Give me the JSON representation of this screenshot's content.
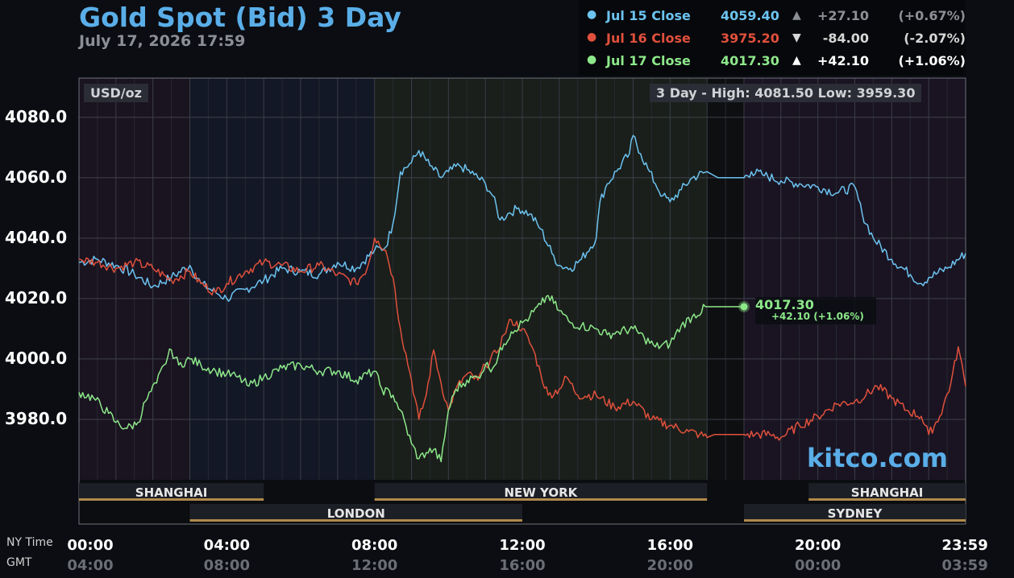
{
  "header": {
    "title": "Gold Spot (Bid) 3 Day",
    "datetime": "July 17, 2026 17:59"
  },
  "legend": [
    {
      "label": "Jul 15 Close",
      "value": "4059.40",
      "arrow": "▲",
      "change": "+27.10",
      "pct": "(+0.67%)",
      "color": "#6cc3f0",
      "dim": true
    },
    {
      "label": "Jul 16 Close",
      "value": "3975.20",
      "arrow": "▼",
      "change": "-84.00",
      "pct": "(-2.07%)",
      "color": "#e0503c",
      "dim": false
    },
    {
      "label": "Jul 17 Close",
      "value": "4017.30",
      "arrow": "▲",
      "change": "+42.10",
      "pct": "(+1.06%)",
      "color": "#8de88a",
      "dim": false
    }
  ],
  "unit_label": "USD/oz",
  "high_low": "3 Day - High: 4081.50  Low: 3959.30",
  "watermark": "kitco.com",
  "last_point": {
    "value": "4017.30",
    "change": "+42.10 (+1.06%)"
  },
  "axis_captions": {
    "ny": "NY Time",
    "gmt": "GMT"
  },
  "sessions": [
    {
      "name": "SHANGHAI",
      "start": 0,
      "end": 5,
      "row": 1
    },
    {
      "name": "NEW YORK",
      "start": 8,
      "end": 17,
      "row": 1
    },
    {
      "name": "SHANGHAI",
      "start": 19.75,
      "end": 24,
      "row": 1
    },
    {
      "name": "LONDON",
      "start": 3,
      "end": 12,
      "row": 2
    },
    {
      "name": "SYDNEY",
      "start": 18,
      "end": 24,
      "row": 2
    }
  ],
  "x_ticks": [
    {
      "hour": 0,
      "ny": "00:00",
      "gmt": "04:00"
    },
    {
      "hour": 4,
      "ny": "04:00",
      "gmt": "08:00"
    },
    {
      "hour": 8,
      "ny": "08:00",
      "gmt": "12:00"
    },
    {
      "hour": 12,
      "ny": "12:00",
      "gmt": "16:00"
    },
    {
      "hour": 16,
      "ny": "16:00",
      "gmt": "20:00"
    },
    {
      "hour": 20,
      "ny": "20:00",
      "gmt": "00:00"
    },
    {
      "hour": 23.98,
      "ny": "23:59",
      "gmt": "03:59"
    }
  ],
  "chart_data": {
    "type": "line",
    "title": "Gold Spot (Bid) 3 Day",
    "ylabel": "USD/oz",
    "y_ticks": [
      "4080.0",
      "4060.0",
      "4040.0",
      "4020.0",
      "4000.0",
      "3980.0"
    ],
    "y_tick_values": [
      4080,
      4060,
      4040,
      4020,
      4000,
      3980
    ],
    "ylim": [
      3960,
      4093
    ],
    "xlim": [
      0,
      24
    ],
    "x_unit": "hours (NY time)",
    "grid": true,
    "series": [
      {
        "name": "Jul 15",
        "color": "#6cc3f0",
        "points": [
          [
            0,
            4032
          ],
          [
            0.5,
            4033
          ],
          [
            1,
            4031
          ],
          [
            1.5,
            4028
          ],
          [
            2,
            4024
          ],
          [
            2.5,
            4027
          ],
          [
            3,
            4031
          ],
          [
            3.3,
            4025
          ],
          [
            3.7,
            4022
          ],
          [
            4,
            4020
          ],
          [
            4.5,
            4023
          ],
          [
            5,
            4026
          ],
          [
            5.5,
            4030
          ],
          [
            6,
            4029
          ],
          [
            6.5,
            4028
          ],
          [
            7,
            4032
          ],
          [
            7.5,
            4030
          ],
          [
            8,
            4036
          ],
          [
            8.3,
            4037
          ],
          [
            8.5,
            4045
          ],
          [
            8.7,
            4062
          ],
          [
            9,
            4065
          ],
          [
            9.2,
            4069
          ],
          [
            9.5,
            4064
          ],
          [
            9.8,
            4060
          ],
          [
            10,
            4062
          ],
          [
            10.3,
            4064
          ],
          [
            10.7,
            4061
          ],
          [
            11,
            4058
          ],
          [
            11.2,
            4054
          ],
          [
            11.4,
            4046
          ],
          [
            11.6,
            4048
          ],
          [
            11.9,
            4050
          ],
          [
            12.2,
            4048
          ],
          [
            12.5,
            4043
          ],
          [
            12.8,
            4035
          ],
          [
            13,
            4031
          ],
          [
            13.3,
            4030
          ],
          [
            13.6,
            4033
          ],
          [
            14,
            4040
          ],
          [
            14.1,
            4052
          ],
          [
            14.3,
            4058
          ],
          [
            14.6,
            4063
          ],
          [
            14.9,
            4068
          ],
          [
            15,
            4074
          ],
          [
            15.2,
            4068
          ],
          [
            15.4,
            4063
          ],
          [
            15.6,
            4058
          ],
          [
            15.8,
            4054
          ],
          [
            16,
            4052
          ],
          [
            16.3,
            4056
          ],
          [
            16.6,
            4060
          ],
          [
            17,
            4062
          ],
          [
            17.3,
            4060
          ],
          [
            18,
            4060
          ],
          [
            18.2,
            4062
          ],
          [
            18.5,
            4061
          ],
          [
            19,
            4059
          ],
          [
            19.5,
            4058
          ],
          [
            20,
            4057
          ],
          [
            20.5,
            4055
          ],
          [
            21,
            4057
          ],
          [
            21.2,
            4048
          ],
          [
            21.5,
            4040
          ],
          [
            22,
            4033
          ],
          [
            22.5,
            4028
          ],
          [
            22.8,
            4025
          ],
          [
            23,
            4027
          ],
          [
            23.5,
            4030
          ],
          [
            24,
            4035
          ]
        ]
      },
      {
        "name": "Jul 16",
        "color": "#e0503c",
        "points": [
          [
            0,
            4033
          ],
          [
            0.5,
            4032
          ],
          [
            1,
            4030
          ],
          [
            1.5,
            4032
          ],
          [
            2,
            4030
          ],
          [
            2.5,
            4026
          ],
          [
            3,
            4029
          ],
          [
            3.3,
            4025
          ],
          [
            3.7,
            4022
          ],
          [
            4,
            4025
          ],
          [
            4.5,
            4029
          ],
          [
            5,
            4032
          ],
          [
            5.5,
            4031
          ],
          [
            6,
            4029
          ],
          [
            6.5,
            4031
          ],
          [
            7,
            4028
          ],
          [
            7.5,
            4025
          ],
          [
            7.8,
            4030
          ],
          [
            8,
            4040
          ],
          [
            8.1,
            4039
          ],
          [
            8.3,
            4036
          ],
          [
            8.5,
            4027
          ],
          [
            8.7,
            4010
          ],
          [
            9,
            3993
          ],
          [
            9.2,
            3980
          ],
          [
            9.4,
            3988
          ],
          [
            9.6,
            4003
          ],
          [
            9.8,
            3992
          ],
          [
            10,
            3983
          ],
          [
            10.2,
            3990
          ],
          [
            10.5,
            3995
          ],
          [
            10.8,
            3993
          ],
          [
            11,
            3998
          ],
          [
            11.3,
            4002
          ],
          [
            11.5,
            4008
          ],
          [
            11.7,
            4013
          ],
          [
            12,
            4010
          ],
          [
            12.3,
            4003
          ],
          [
            12.5,
            3995
          ],
          [
            12.7,
            3988
          ],
          [
            13,
            3990
          ],
          [
            13.2,
            3994
          ],
          [
            13.5,
            3988
          ],
          [
            14,
            3988
          ],
          [
            14.5,
            3984
          ],
          [
            15,
            3986
          ],
          [
            15.5,
            3980
          ],
          [
            16,
            3978
          ],
          [
            16.5,
            3976
          ],
          [
            16.8,
            3975
          ],
          [
            17,
            3974
          ],
          [
            17.2,
            3975
          ],
          [
            18,
            3975
          ],
          [
            18.3,
            3975
          ],
          [
            18.7,
            3975
          ],
          [
            19,
            3974
          ],
          [
            19.5,
            3978
          ],
          [
            20,
            3981
          ],
          [
            20.5,
            3985
          ],
          [
            21,
            3986
          ],
          [
            21.3,
            3988
          ],
          [
            21.6,
            3991
          ],
          [
            22,
            3987
          ],
          [
            22.4,
            3983
          ],
          [
            22.8,
            3981
          ],
          [
            23,
            3975
          ],
          [
            23.3,
            3981
          ],
          [
            23.6,
            3992
          ],
          [
            23.8,
            4004
          ],
          [
            24,
            3991
          ]
        ]
      },
      {
        "name": "Jul 17",
        "color": "#8de88a",
        "points": [
          [
            0,
            3989
          ],
          [
            0.4,
            3987
          ],
          [
            0.8,
            3982
          ],
          [
            1,
            3979
          ],
          [
            1.3,
            3977
          ],
          [
            1.6,
            3979
          ],
          [
            1.8,
            3986
          ],
          [
            2.1,
            3992
          ],
          [
            2.3,
            3998
          ],
          [
            2.5,
            4003
          ],
          [
            2.7,
            3998
          ],
          [
            3,
            4000
          ],
          [
            3.3,
            3998
          ],
          [
            3.7,
            3996
          ],
          [
            4,
            3995
          ],
          [
            4.3,
            3994
          ],
          [
            4.6,
            3991
          ],
          [
            5,
            3994
          ],
          [
            5.5,
            3997
          ],
          [
            6,
            3998
          ],
          [
            6.5,
            3996
          ],
          [
            7,
            3996
          ],
          [
            7.5,
            3993
          ],
          [
            8,
            3996
          ],
          [
            8.2,
            3990
          ],
          [
            8.5,
            3988
          ],
          [
            8.7,
            3983
          ],
          [
            9,
            3972
          ],
          [
            9.2,
            3967
          ],
          [
            9.4,
            3969
          ],
          [
            9.6,
            3970
          ],
          [
            9.8,
            3966
          ],
          [
            10,
            3983
          ],
          [
            10.2,
            3990
          ],
          [
            10.5,
            3993
          ],
          [
            10.8,
            3994
          ],
          [
            11,
            3998
          ],
          [
            11.2,
            3997
          ],
          [
            11.5,
            4005
          ],
          [
            11.7,
            4009
          ],
          [
            12,
            4012
          ],
          [
            12.2,
            4014
          ],
          [
            12.5,
            4018
          ],
          [
            12.7,
            4021
          ],
          [
            13,
            4016
          ],
          [
            13.3,
            4012
          ],
          [
            13.6,
            4011
          ],
          [
            14,
            4010
          ],
          [
            14.3,
            4008
          ],
          [
            14.6,
            4009
          ],
          [
            15,
            4010
          ],
          [
            15.3,
            4007
          ],
          [
            15.6,
            4004
          ],
          [
            16,
            4005
          ],
          [
            16.3,
            4011
          ],
          [
            16.6,
            4014
          ],
          [
            17,
            4017.3
          ],
          [
            18,
            4017.3
          ]
        ]
      }
    ]
  }
}
